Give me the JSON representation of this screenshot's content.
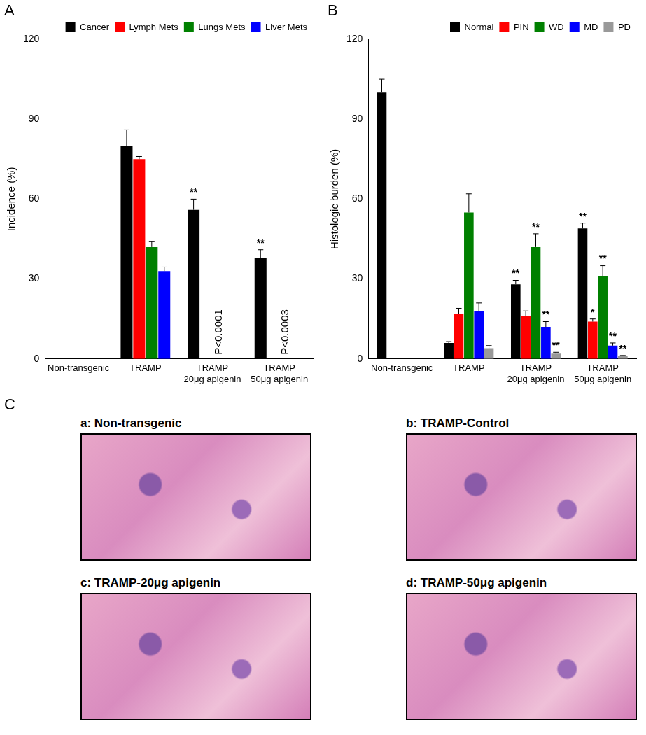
{
  "chart_data": [
    {
      "type": "bar",
      "panel": "A",
      "y_label": "Incidence (%)",
      "categories": [
        "Non-transgenic",
        "TRAMP",
        "TRAMP\n20μg apigenin",
        "TRAMP\n50μg apigenin"
      ],
      "series": [
        {
          "name": "Cancer",
          "color": "#000000",
          "values": [
            0,
            80,
            56,
            38
          ],
          "errors": [
            null,
            6,
            4,
            3
          ]
        },
        {
          "name": "Lymph Mets",
          "color": "#ff0000",
          "values": [
            0,
            75,
            0,
            0
          ],
          "errors": [
            null,
            1,
            null,
            null
          ]
        },
        {
          "name": "Lungs Mets",
          "color": "#008000",
          "values": [
            0,
            42,
            0,
            0
          ],
          "errors": [
            null,
            2,
            null,
            null
          ]
        },
        {
          "name": "Liver Mets",
          "color": "#0000ff",
          "values": [
            0,
            33,
            0,
            0
          ],
          "errors": [
            null,
            1.5,
            null,
            null
          ]
        }
      ],
      "annotations": [
        {
          "text": "**",
          "category": 2,
          "series": "Cancer"
        },
        {
          "text": "**",
          "category": 3,
          "series": "Cancer"
        },
        {
          "text": "P<0.0001",
          "category": 2,
          "series": [
            "Lymph Mets",
            "Lungs Mets",
            "Liver Mets"
          ]
        },
        {
          "text": "P<0.0003",
          "category": 3,
          "series": [
            "Lymph Mets",
            "Lungs Mets",
            "Liver Mets"
          ]
        }
      ],
      "ylim": [
        0,
        120
      ],
      "yticks": [
        0,
        30,
        60,
        90,
        120
      ],
      "grid": false,
      "legend": "top"
    },
    {
      "type": "bar",
      "panel": "B",
      "y_label": "Histologic burden (%)",
      "categories": [
        "Non-transgenic",
        "TRAMP",
        "TRAMP\n20μg apigenin",
        "TRAMP\n50μg apigenin"
      ],
      "series": [
        {
          "name": "Normal",
          "color": "#000000",
          "values": [
            100,
            6,
            28,
            49
          ],
          "errors": [
            5,
            0.5,
            1.5,
            2
          ]
        },
        {
          "name": "PIN",
          "color": "#ff0000",
          "values": [
            0,
            17,
            16,
            14
          ],
          "errors": [
            null,
            2,
            2,
            1
          ]
        },
        {
          "name": "WD",
          "color": "#008000",
          "values": [
            0,
            55,
            42,
            31
          ],
          "errors": [
            null,
            7,
            5,
            4
          ]
        },
        {
          "name": "MD",
          "color": "#0000ff",
          "values": [
            0,
            18,
            12,
            5
          ],
          "errors": [
            null,
            3,
            2,
            1
          ]
        },
        {
          "name": "PD",
          "color": "#999999",
          "values": [
            0,
            4,
            2,
            1
          ],
          "errors": [
            null,
            1,
            0.5,
            0.3
          ]
        }
      ],
      "annotations": [
        {
          "text": "**",
          "category": 2,
          "series": "Normal"
        },
        {
          "text": "**",
          "category": 2,
          "series": "WD"
        },
        {
          "text": "**",
          "category": 2,
          "series": "MD"
        },
        {
          "text": "**",
          "category": 2,
          "series": "PD"
        },
        {
          "text": "**",
          "category": 3,
          "series": "Normal"
        },
        {
          "text": "*",
          "category": 3,
          "series": "PIN"
        },
        {
          "text": "**",
          "category": 3,
          "series": "WD"
        },
        {
          "text": "**",
          "category": 3,
          "series": "MD"
        },
        {
          "text": "**",
          "category": 3,
          "series": "PD"
        }
      ],
      "ylim": [
        0,
        120
      ],
      "yticks": [
        0,
        30,
        60,
        90,
        120
      ],
      "grid": false,
      "legend": "top"
    }
  ],
  "panel_c": {
    "panel": "C",
    "images": [
      "a: Non-transgenic",
      "b: TRAMP-Control",
      "c: TRAMP-20μg apigenin",
      "d: TRAMP-50μg apigenin"
    ]
  }
}
